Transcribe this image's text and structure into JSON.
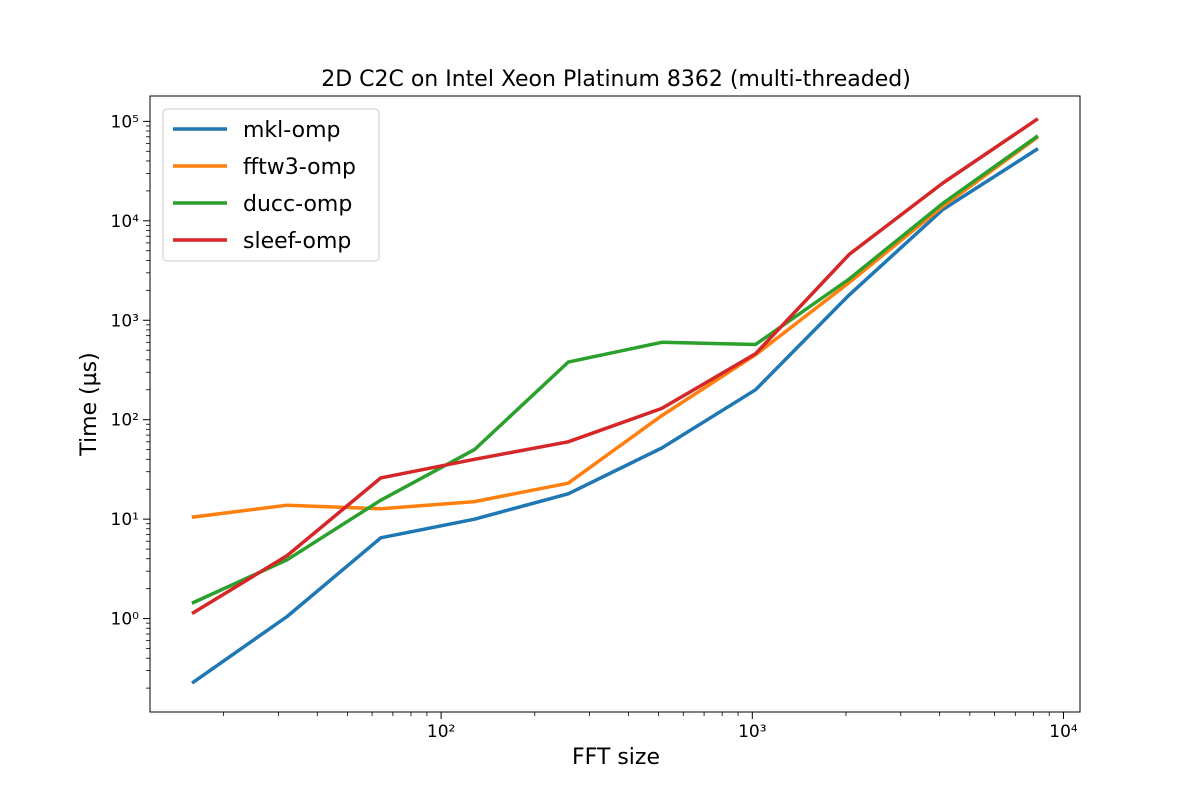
{
  "chart_data": {
    "type": "line",
    "title": "2D C2C on Intel Xeon Platinum 8362 (multi-threaded)",
    "xlabel": "FFT size",
    "ylabel": "Time (µs)",
    "xscale": "log",
    "yscale": "log",
    "xlim": [
      11.6,
      11300
    ],
    "ylim": [
      0.115,
      180000
    ],
    "grid": false,
    "legend_position": "top-left",
    "x": [
      16,
      32,
      64,
      128,
      256,
      512,
      1024,
      2048,
      4096,
      8192
    ],
    "x_ticks": [
      {
        "value": 100,
        "label": "10²"
      },
      {
        "value": 1000,
        "label": "10³"
      },
      {
        "value": 10000,
        "label": "10⁴"
      }
    ],
    "y_ticks": [
      {
        "value": 1,
        "label": "10⁰"
      },
      {
        "value": 10,
        "label": "10¹"
      },
      {
        "value": 100,
        "label": "10²"
      },
      {
        "value": 1000,
        "label": "10³"
      },
      {
        "value": 10000,
        "label": "10⁴"
      },
      {
        "value": 100000,
        "label": "10⁵"
      }
    ],
    "series": [
      {
        "name": "mkl-omp",
        "color": "#1f77b4",
        "values": [
          0.23,
          1.05,
          6.5,
          10,
          18,
          52,
          200,
          1800,
          13000,
          52000
        ]
      },
      {
        "name": "fftw3-omp",
        "color": "#ff7f0e",
        "values": [
          10.5,
          13.8,
          12.7,
          15,
          23,
          110,
          450,
          2400,
          14000,
          68000
        ]
      },
      {
        "name": "ducc-omp",
        "color": "#2ca02c",
        "values": [
          1.45,
          3.9,
          15.5,
          50,
          380,
          600,
          570,
          2600,
          15000,
          70000
        ]
      },
      {
        "name": "sleef-omp",
        "color": "#d62728",
        "values": [
          1.15,
          4.3,
          26,
          40,
          60,
          130,
          460,
          4600,
          24000,
          104000
        ]
      }
    ]
  }
}
